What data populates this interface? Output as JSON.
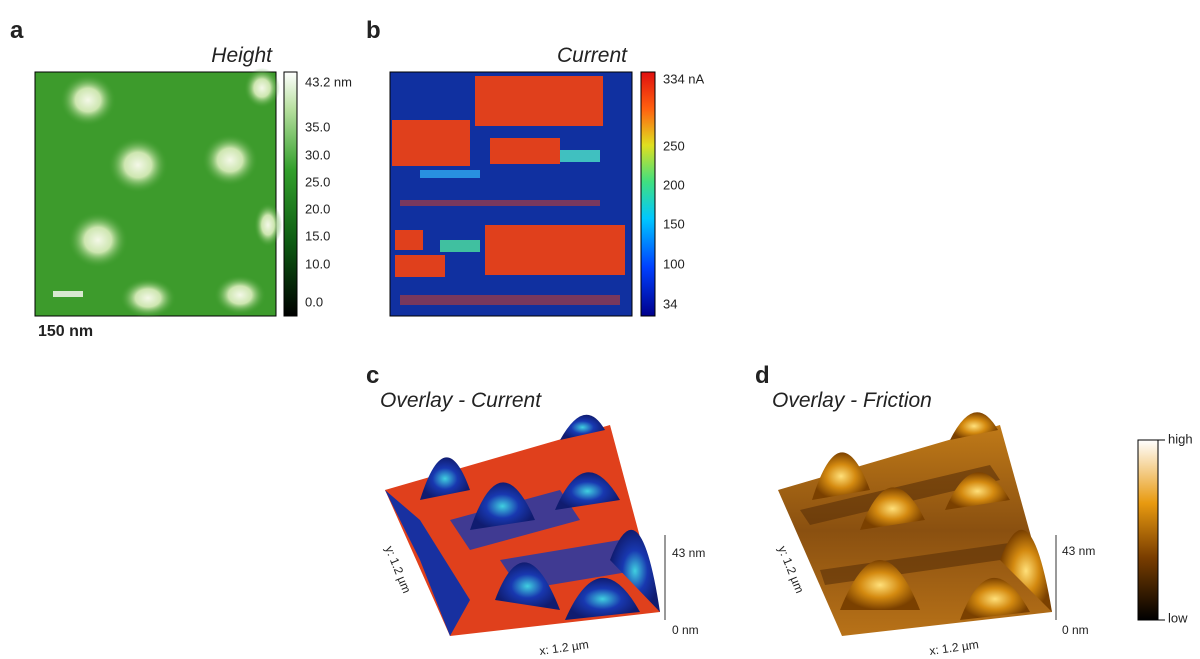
{
  "panels": [
    {
      "label": "a",
      "title": "Height",
      "colorbar": {
        "ticks": [
          "43.2 nm",
          "35.0",
          "30.0",
          "25.0",
          "20.0",
          "15.0",
          "10.0",
          "0.0"
        ]
      },
      "scale_bar": "150 nm"
    },
    {
      "label": "b",
      "title": "Current",
      "colorbar": {
        "ticks": [
          "334 nA",
          "250",
          "200",
          "150",
          "100",
          "34"
        ]
      }
    },
    {
      "label": "c",
      "title": "Overlay  -  Current",
      "axes": {
        "y": "y: 1.2 µm",
        "x": "x: 1.2 µm",
        "z_top": "43 nm",
        "z_bottom": "0 nm"
      }
    },
    {
      "label": "d",
      "title": "Overlay  -  Friction",
      "axes": {
        "y": "y: 1.2 µm",
        "x": "x: 1.2 µm",
        "z_top": "43 nm",
        "z_bottom": "0 nm"
      },
      "colorbar": {
        "ticks": [
          "high",
          "low"
        ]
      }
    }
  ]
}
